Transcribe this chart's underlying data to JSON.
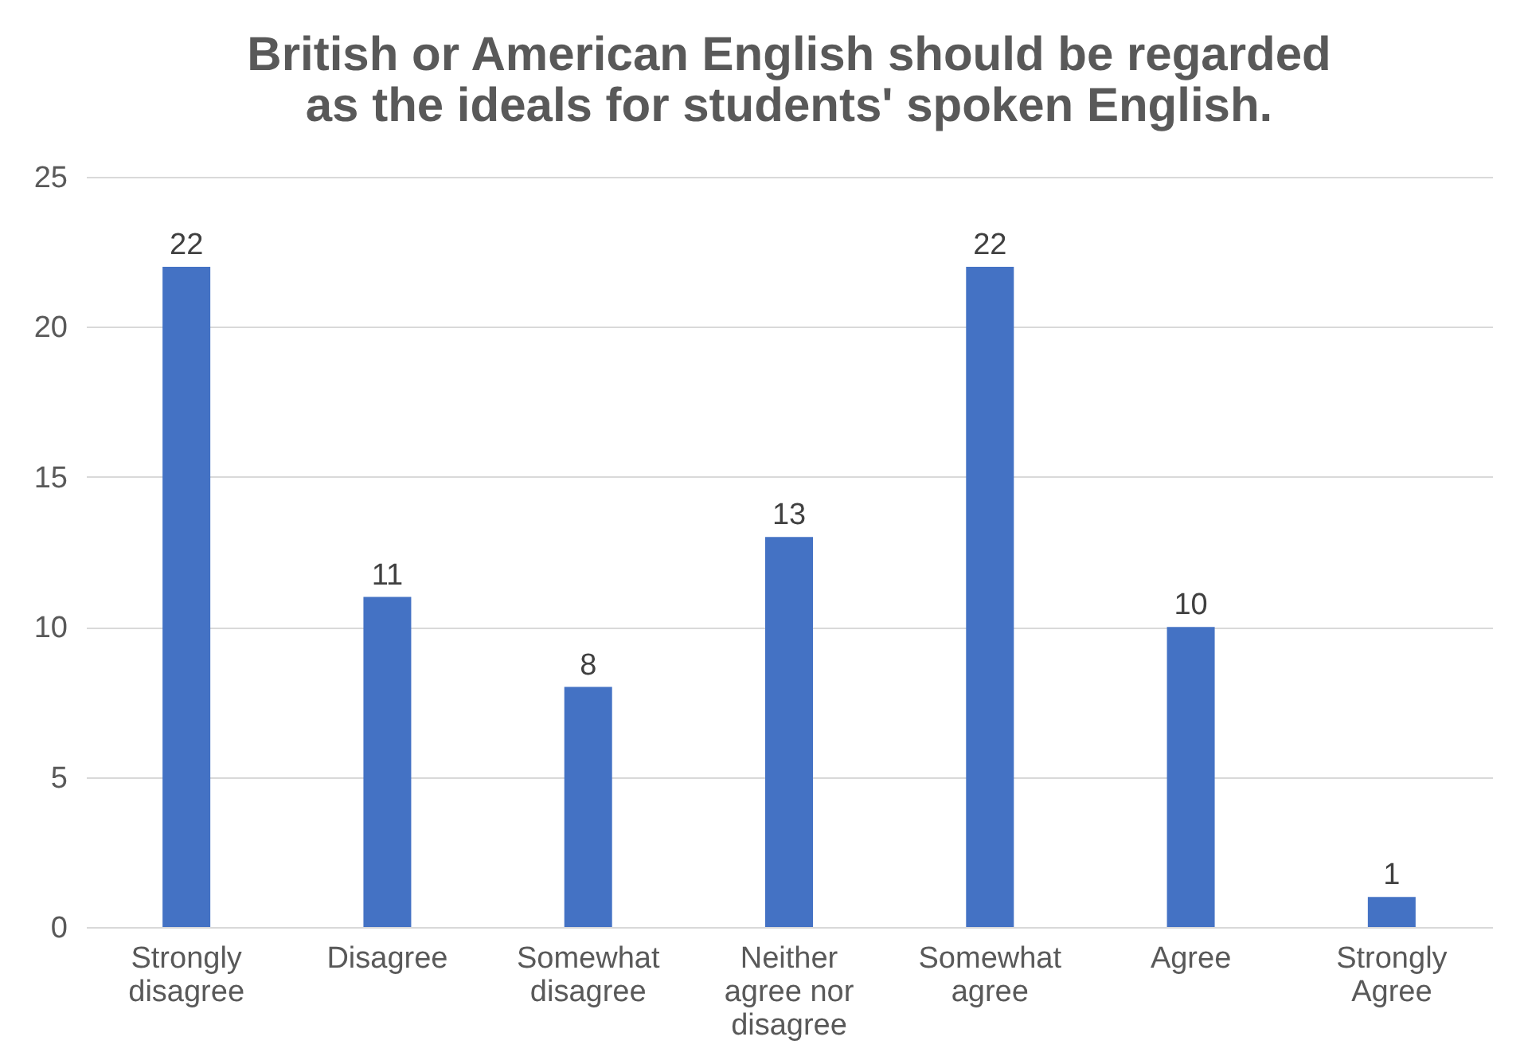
{
  "chart_data": {
    "type": "bar",
    "title": "British or American English should be regarded as the ideals for students' spoken English.",
    "categories": [
      "Strongly disagree",
      "Disagree",
      "Somewhat disagree",
      "Neither agree nor disagree",
      "Somewhat agree",
      "Agree",
      "Strongly Agree"
    ],
    "values": [
      22,
      11,
      8,
      13,
      22,
      10,
      1
    ],
    "color": "#4472c4",
    "ylim": [
      0,
      25
    ],
    "yticks": [
      0,
      5,
      10,
      15,
      20,
      25
    ],
    "grid": "y",
    "data_labels": true
  }
}
